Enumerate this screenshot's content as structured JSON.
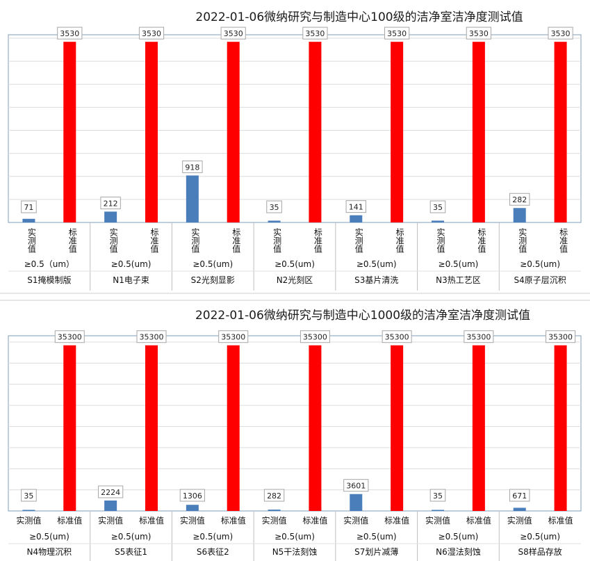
{
  "chart_data": [
    {
      "type": "bar",
      "title": "2022-01-06微纳研究与制造中心100级的洁净室洁净度测试值",
      "bar_labels": [
        "实测值",
        "标准值"
      ],
      "bar_colors": {
        "实测值": "#4a7ebb",
        "标准值": "#ff0000"
      },
      "ylim": [
        0,
        3600
      ],
      "grid": true,
      "groups": [
        {
          "particle": "≥0.5（um）",
          "room": "S1掩模制版",
          "measured": 71,
          "standard": 3530
        },
        {
          "particle": "≥0.5(um)",
          "room": "N1电子束",
          "measured": 212,
          "standard": 3530
        },
        {
          "particle": "≥0.5(um)",
          "room": "S2光刻显影",
          "measured": 918,
          "standard": 3530
        },
        {
          "particle": "≥0.5(um)",
          "room": "N2光刻区",
          "measured": 35,
          "standard": 3530
        },
        {
          "particle": "≥0.5(um)",
          "room": "S3基片清洗",
          "measured": 141,
          "standard": 3530
        },
        {
          "particle": "≥0.5(um)",
          "room": "N3热工艺区",
          "measured": 35,
          "standard": 3530
        },
        {
          "particle": "≥0.5(um)",
          "room": "S4原子层沉积",
          "measured": 282,
          "standard": 3530
        }
      ]
    },
    {
      "type": "bar",
      "title": "2022-01-06微纳研究与制造中心1000级的洁净室洁净度测试值",
      "bar_labels": [
        "实测值",
        "标准值"
      ],
      "bar_colors": {
        "实测值": "#4a7ebb",
        "标准值": "#ff0000"
      },
      "ylim": [
        0,
        36000
      ],
      "grid": true,
      "groups": [
        {
          "particle": "≥0.5(um)",
          "room": "N4物理沉积",
          "measured": 35,
          "standard": 35300
        },
        {
          "particle": "≥0.5(um)",
          "room": "S5表征1",
          "measured": 2224,
          "standard": 35300
        },
        {
          "particle": "≥0.5(um)",
          "room": "S6表征2",
          "measured": 1306,
          "standard": 35300
        },
        {
          "particle": "≥0.5(um)",
          "room": "N5干法刻蚀",
          "measured": 282,
          "standard": 35300
        },
        {
          "particle": "≥0.5(um)",
          "room": "S7划片减薄",
          "measured": 3601,
          "standard": 35300
        },
        {
          "particle": "≥0.5(um)",
          "room": "N6湿法刻蚀",
          "measured": 35,
          "standard": 35300
        },
        {
          "particle": "≥0.5(um)",
          "room": "S8样品存放",
          "measured": 671,
          "standard": 35300
        }
      ]
    }
  ]
}
